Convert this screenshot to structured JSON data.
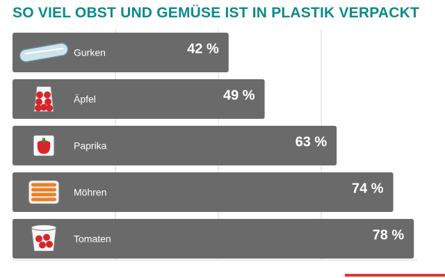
{
  "title": "SO VIEL OBST UND GEMÜSE IST IN PLASTIK VERPACKT",
  "colors": {
    "title": "#0b8a8a",
    "bar": "#6a6a6a",
    "grid": "#d6d6d6",
    "accent": "#e8322a"
  },
  "chart_data": {
    "type": "bar",
    "orientation": "horizontal",
    "title": "SO VIEL OBST UND GEMÜSE IST IN PLASTIK VERPACKT",
    "categories": [
      "Gurken",
      "Äpfel",
      "Paprika",
      "Möhren",
      "Tomaten"
    ],
    "values": [
      42,
      49,
      63,
      74,
      78
    ],
    "value_labels": [
      "42 %",
      "49 %",
      "63 %",
      "74 %",
      "78 %"
    ],
    "icons": [
      "cucumber-icon",
      "apple-bag-icon",
      "bell-pepper-icon",
      "carrot-pack-icon",
      "tomato-tub-icon"
    ],
    "xlim": [
      0,
      80
    ],
    "grid": true,
    "legend": "none"
  }
}
